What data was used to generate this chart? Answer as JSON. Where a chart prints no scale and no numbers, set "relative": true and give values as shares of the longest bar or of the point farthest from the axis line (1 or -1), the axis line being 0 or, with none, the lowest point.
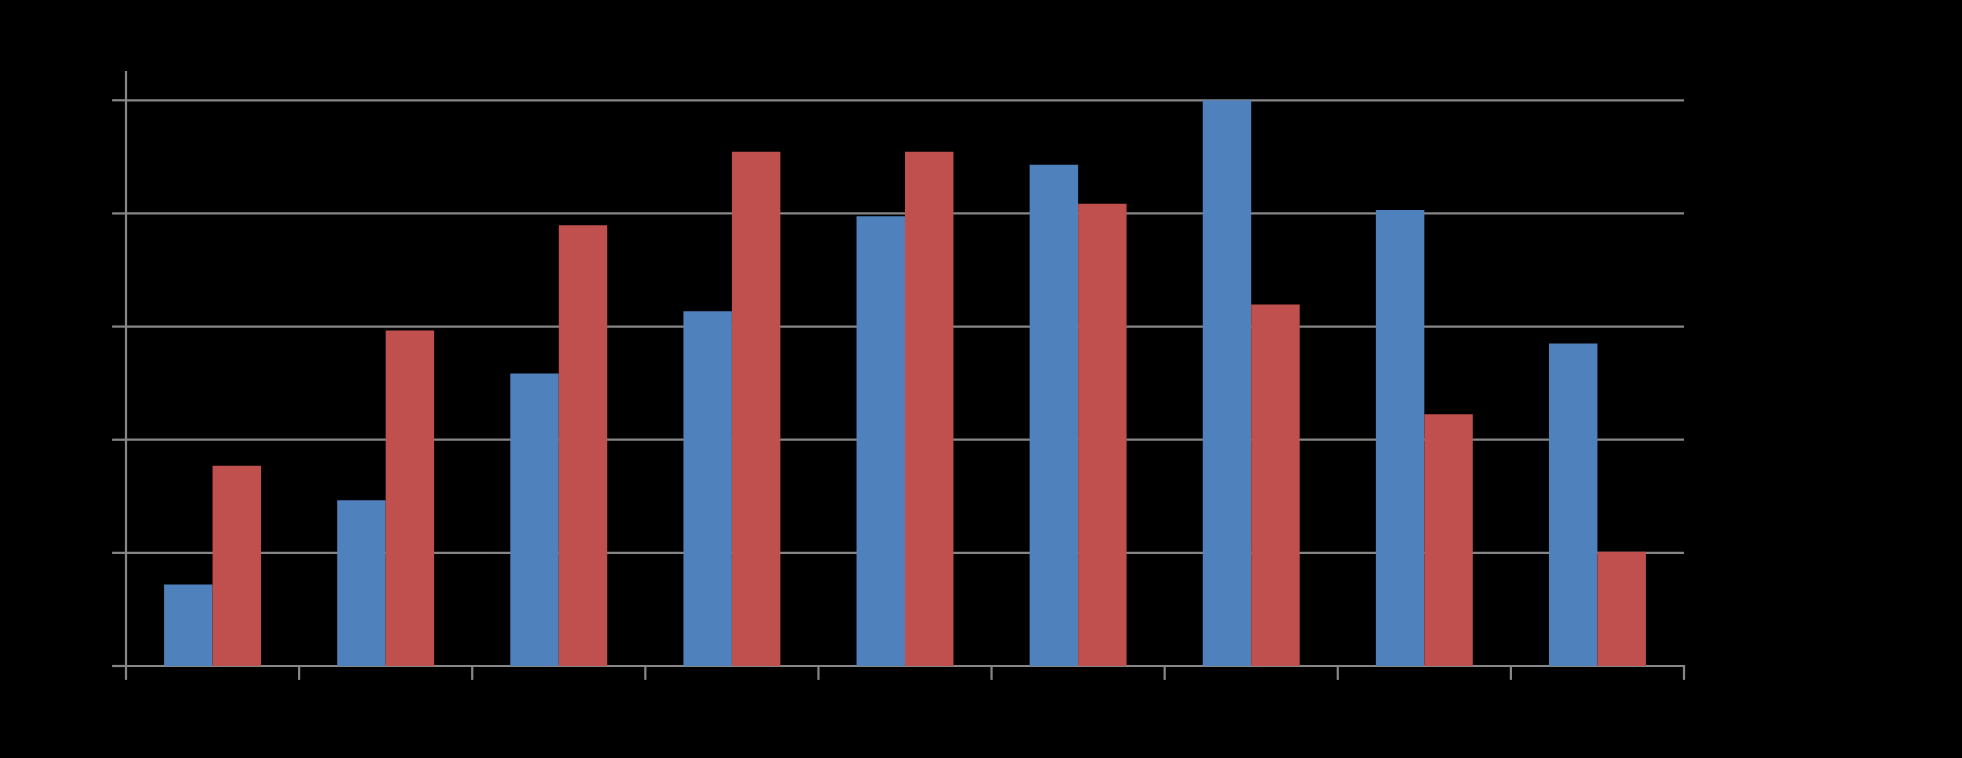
{
  "chart_data": {
    "type": "bar",
    "relative": true,
    "grid": "y",
    "categories": [
      null,
      null,
      null,
      null,
      null,
      null,
      null,
      null,
      null
    ],
    "series": [
      {
        "color": "#4f81bd",
        "values": [
          0.144,
          0.293,
          0.517,
          0.627,
          0.795,
          0.886,
          1,
          0.806,
          0.57
        ]
      },
      {
        "color": "#c0504d",
        "values": [
          0.354,
          0.593,
          0.779,
          0.909,
          0.909,
          0.817,
          0.639,
          0.445,
          0.202
        ]
      }
    ]
  }
}
